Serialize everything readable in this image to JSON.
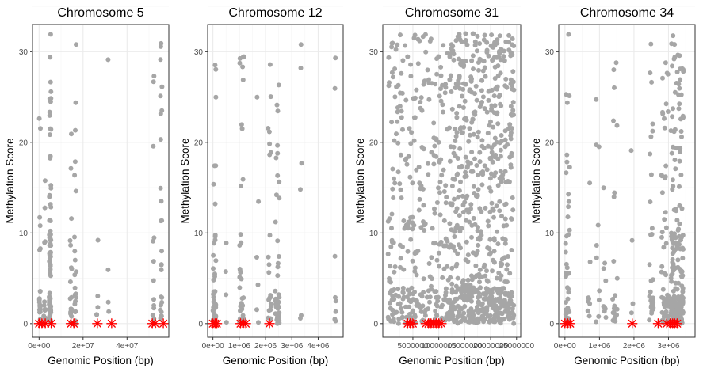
{
  "chart_data": [
    {
      "type": "scatter",
      "title": "Chromosome 5",
      "xlabel": "Genomic Position (bp)",
      "ylabel": "Methylation Score",
      "xlim": [
        -3000000,
        59000000
      ],
      "ylim": [
        -1.5,
        33
      ],
      "xticks": [
        0,
        20000000,
        40000000
      ],
      "xtick_labels": [
        "0e+00",
        "2e+07",
        "4e+07"
      ],
      "yticks": [
        0,
        10,
        20,
        30
      ],
      "ytick_labels": [
        "0",
        "10",
        "20",
        "30"
      ],
      "grid": true,
      "clusters": [
        {
          "x": 300000,
          "spread": 300000,
          "n": 20
        },
        {
          "x": 2500000,
          "spread": 400000,
          "n": 12
        },
        {
          "x": 5000000,
          "spread": 400000,
          "n": 95
        },
        {
          "x": 14500000,
          "spread": 400000,
          "n": 16
        },
        {
          "x": 16500000,
          "spread": 400000,
          "n": 22
        },
        {
          "x": 26500000,
          "spread": 300000,
          "n": 5
        },
        {
          "x": 31500000,
          "spread": 300000,
          "n": 4
        },
        {
          "x": 52000000,
          "spread": 300000,
          "n": 12
        },
        {
          "x": 55500000,
          "spread": 400000,
          "n": 26
        }
      ],
      "highlights_x": [
        0,
        1300000,
        2800000,
        5500000,
        14500000,
        15800000,
        26500000,
        33000000,
        51500000,
        52800000,
        56500000
      ]
    },
    {
      "type": "scatter",
      "title": "Chromosome 12",
      "xlabel": "Genomic Position (bp)",
      "ylabel": "Methylation Score",
      "xlim": [
        -200000,
        4950000
      ],
      "ylim": [
        -1.5,
        33
      ],
      "xticks": [
        0,
        1000000,
        2000000,
        3000000,
        4000000
      ],
      "xtick_labels": [
        "0e+00",
        "1e+06",
        "2e+06",
        "3e+06",
        "4e+06"
      ],
      "yticks": [
        0,
        10,
        20,
        30
      ],
      "ytick_labels": [
        "0",
        "10",
        "20",
        "30"
      ],
      "grid": true,
      "clusters": [
        {
          "x": 60000,
          "spread": 60000,
          "n": 40
        },
        {
          "x": 500000,
          "spread": 40000,
          "n": 4
        },
        {
          "x": 1100000,
          "spread": 90000,
          "n": 38
        },
        {
          "x": 1700000,
          "spread": 40000,
          "n": 6
        },
        {
          "x": 2150000,
          "spread": 60000,
          "n": 22
        },
        {
          "x": 2450000,
          "spread": 80000,
          "n": 42
        },
        {
          "x": 3350000,
          "spread": 30000,
          "n": 6
        },
        {
          "x": 4650000,
          "spread": 30000,
          "n": 8
        }
      ],
      "highlights_x": [
        0,
        80000,
        150000,
        1050000,
        1150000,
        1250000,
        2150000
      ]
    },
    {
      "type": "scatter",
      "title": "Chromosome 31",
      "xlabel": "Genomic Position (bp)",
      "ylabel": "Methylation Score",
      "xlim": [
        -800000,
        25800000
      ],
      "ylim": [
        -1.5,
        33
      ],
      "xticks": [
        5000000,
        10000000,
        15000000,
        20000000,
        25000000
      ],
      "xtick_labels": [
        "5000000",
        "10000000",
        "15000000",
        "20000000",
        "25000000"
      ],
      "yticks": [
        0,
        10,
        20,
        30
      ],
      "ytick_labels": [
        "0",
        "10",
        "20",
        "30"
      ],
      "grid": true,
      "uniform_regions": [
        {
          "x0": 200000,
          "x1": 6500000,
          "n": 180
        },
        {
          "x0": 6500000,
          "x1": 12000000,
          "n": 140
        },
        {
          "x0": 12000000,
          "x1": 24500000,
          "n": 700
        }
      ],
      "highlights_x": [
        4000000,
        4500000,
        5000000,
        7500000,
        8000000,
        8500000,
        9000000,
        9500000,
        10000000,
        10500000
      ]
    },
    {
      "type": "scatter",
      "title": "Chromosome 34",
      "xlabel": "Genomic Position (bp)",
      "ylabel": "Methylation Score",
      "xlim": [
        -180000,
        3770000
      ],
      "ylim": [
        -1.5,
        33
      ],
      "xticks": [
        0,
        1000000,
        2000000,
        3000000
      ],
      "xtick_labels": [
        "0e+00",
        "1e+06",
        "2e+06",
        "3e+06"
      ],
      "yticks": [
        0,
        10,
        20,
        30
      ],
      "ytick_labels": [
        "0",
        "10",
        "20",
        "30"
      ],
      "grid": true,
      "clusters": [
        {
          "x": 80000,
          "spread": 60000,
          "n": 45
        },
        {
          "x": 700000,
          "spread": 40000,
          "n": 8
        },
        {
          "x": 950000,
          "spread": 50000,
          "n": 10
        },
        {
          "x": 1150000,
          "spread": 50000,
          "n": 10
        },
        {
          "x": 1450000,
          "spread": 70000,
          "n": 22
        },
        {
          "x": 1950000,
          "spread": 30000,
          "n": 4
        },
        {
          "x": 2500000,
          "spread": 60000,
          "n": 30
        },
        {
          "x": 2900000,
          "spread": 100000,
          "n": 60
        },
        {
          "x": 3250000,
          "spread": 180000,
          "n": 220
        }
      ],
      "highlights_x": [
        0,
        80000,
        150000,
        1950000,
        2700000,
        2950000,
        3050000,
        3120000,
        3180000,
        3250000
      ]
    }
  ],
  "colors": {
    "points": "#a6a6a6",
    "highlight": "#ff0000",
    "grid_major": "#ebebeb",
    "grid_minor": "#f5f5f5",
    "panel_border": "#333333",
    "tick_text": "#4d4d4d"
  }
}
